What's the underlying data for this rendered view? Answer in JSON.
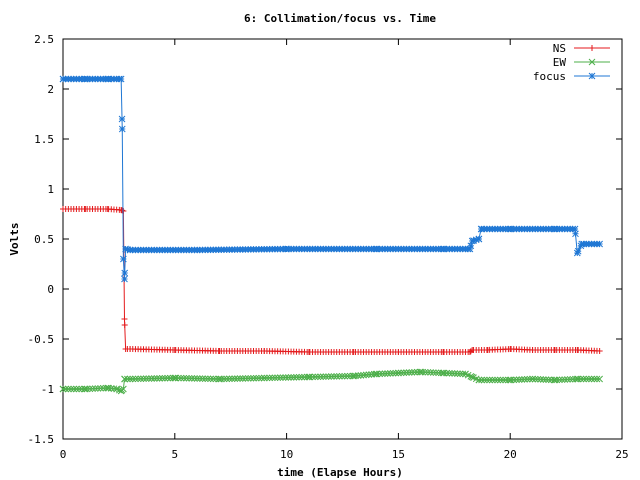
{
  "chart_data": {
    "type": "line",
    "title": "6: Collimation/focus vs. Time",
    "xlabel": "time (Elapse Hours)",
    "ylabel": "Volts",
    "xlim": [
      0,
      25
    ],
    "ylim": [
      -1.5,
      2.5
    ],
    "xticks": [
      0,
      5,
      10,
      15,
      20,
      25
    ],
    "xtick_labels": [
      "0",
      "5",
      "10",
      "15",
      "20",
      "25"
    ],
    "yticks": [
      -1.5,
      -1,
      -0.5,
      0,
      0.5,
      1,
      1.5,
      2,
      2.5
    ],
    "ytick_labels": [
      "-1.5",
      "-1",
      "-0.5",
      "0",
      "0.5",
      "1",
      "1.5",
      "2",
      "2.5"
    ],
    "legend_position": "top-right",
    "grid": false,
    "series": [
      {
        "name": "NS",
        "color": "#e41a1c",
        "marker": "plus",
        "points": [
          [
            0,
            0.8
          ],
          [
            1,
            0.8
          ],
          [
            2,
            0.8
          ],
          [
            2.6,
            0.79
          ],
          [
            2.7,
            0.78
          ],
          [
            2.75,
            -0.3
          ],
          [
            2.8,
            -0.6
          ],
          [
            3,
            -0.6
          ],
          [
            5,
            -0.61
          ],
          [
            7,
            -0.62
          ],
          [
            9,
            -0.62
          ],
          [
            11,
            -0.63
          ],
          [
            13,
            -0.63
          ],
          [
            15,
            -0.63
          ],
          [
            17,
            -0.63
          ],
          [
            18.2,
            -0.63
          ],
          [
            18.3,
            -0.61
          ],
          [
            19,
            -0.61
          ],
          [
            20,
            -0.6
          ],
          [
            21,
            -0.61
          ],
          [
            22,
            -0.61
          ],
          [
            23,
            -0.61
          ],
          [
            24,
            -0.62
          ]
        ]
      },
      {
        "name": "EW",
        "color": "#4daf4a",
        "marker": "cross",
        "points": [
          [
            0,
            -1.0
          ],
          [
            1,
            -1.0
          ],
          [
            2,
            -0.99
          ],
          [
            2.4,
            -1.0
          ],
          [
            2.6,
            -1.02
          ],
          [
            2.7,
            -1.0
          ],
          [
            2.75,
            -0.9
          ],
          [
            3,
            -0.9
          ],
          [
            5,
            -0.89
          ],
          [
            7,
            -0.9
          ],
          [
            9,
            -0.89
          ],
          [
            11,
            -0.88
          ],
          [
            13,
            -0.87
          ],
          [
            14,
            -0.85
          ],
          [
            15,
            -0.84
          ],
          [
            16,
            -0.83
          ],
          [
            17,
            -0.84
          ],
          [
            18,
            -0.85
          ],
          [
            18.3,
            -0.88
          ],
          [
            18.6,
            -0.91
          ],
          [
            20,
            -0.91
          ],
          [
            21,
            -0.9
          ],
          [
            22,
            -0.91
          ],
          [
            23,
            -0.9
          ],
          [
            24,
            -0.9
          ]
        ]
      },
      {
        "name": "focus",
        "color": "#1f77d4",
        "marker": "star",
        "points": [
          [
            0,
            2.1
          ],
          [
            1,
            2.1
          ],
          [
            2,
            2.1
          ],
          [
            2.6,
            2.1
          ],
          [
            2.65,
            1.6
          ],
          [
            2.7,
            0.3
          ],
          [
            2.75,
            0.1
          ],
          [
            2.8,
            0.4
          ],
          [
            3,
            0.39
          ],
          [
            6,
            0.39
          ],
          [
            10,
            0.4
          ],
          [
            14,
            0.4
          ],
          [
            17,
            0.4
          ],
          [
            18.2,
            0.4
          ],
          [
            18.3,
            0.48
          ],
          [
            18.6,
            0.5
          ],
          [
            18.7,
            0.6
          ],
          [
            20,
            0.6
          ],
          [
            22,
            0.6
          ],
          [
            22.9,
            0.6
          ],
          [
            23,
            0.36
          ],
          [
            23.2,
            0.45
          ],
          [
            24,
            0.45
          ]
        ]
      }
    ]
  }
}
